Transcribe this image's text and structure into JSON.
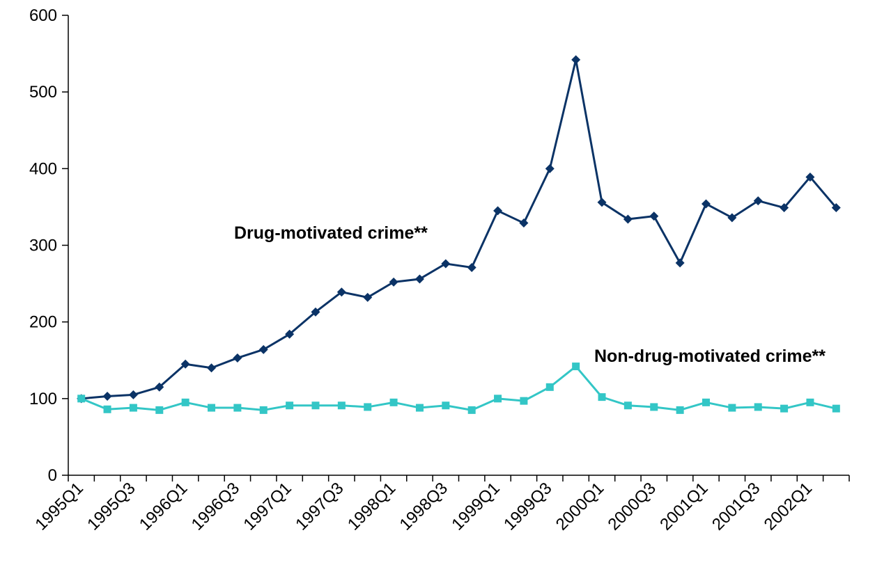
{
  "chart_data": {
    "type": "line",
    "title": "",
    "xlabel": "",
    "ylabel": "",
    "ylim": [
      0,
      600
    ],
    "yticks": [
      0,
      100,
      200,
      300,
      400,
      500,
      600
    ],
    "x": [
      "1995Q1",
      "1995Q2",
      "1995Q3",
      "1995Q4",
      "1996Q1",
      "1996Q2",
      "1996Q3",
      "1996Q4",
      "1997Q1",
      "1997Q2",
      "1997Q3",
      "1997Q4",
      "1998Q1",
      "1998Q2",
      "1998Q3",
      "1998Q4",
      "1999Q1",
      "1999Q2",
      "1999Q3",
      "1999Q4",
      "2000Q1",
      "2000Q2",
      "2000Q3",
      "2000Q4",
      "2001Q1",
      "2001Q2",
      "2001Q3",
      "2001Q4",
      "2002Q1",
      "2002Q2"
    ],
    "xtick_labels": [
      "1995Q1",
      "",
      "1995Q3",
      "",
      "1996Q1",
      "",
      "1996Q3",
      "",
      "1997Q1",
      "",
      "1997Q3",
      "",
      "1998Q1",
      "",
      "1998Q3",
      "",
      "1999Q1",
      "",
      "1999Q3",
      "",
      "2000Q1",
      "",
      "2000Q3",
      "",
      "2001Q1",
      "",
      "2001Q3",
      "",
      "2002Q1",
      ""
    ],
    "grid": false,
    "legend": "labels-on-chart",
    "series": [
      {
        "name": "Drug-motivated crime**",
        "color": "#0b3366",
        "marker": "diamond",
        "values": [
          100,
          103,
          105,
          115,
          145,
          140,
          153,
          164,
          184,
          213,
          239,
          232,
          252,
          256,
          276,
          271,
          345,
          329,
          400,
          542,
          356,
          334,
          338,
          277,
          354,
          336,
          358,
          349,
          389,
          349
        ]
      },
      {
        "name": "Non-drug-motivated crime**",
        "color": "#33c6c6",
        "marker": "square",
        "values": [
          100,
          86,
          88,
          85,
          95,
          88,
          88,
          85,
          91,
          91,
          91,
          89,
          95,
          88,
          91,
          85,
          100,
          97,
          115,
          142,
          102,
          91,
          89,
          85,
          95,
          88,
          89,
          87,
          95,
          87
        ]
      }
    ]
  }
}
